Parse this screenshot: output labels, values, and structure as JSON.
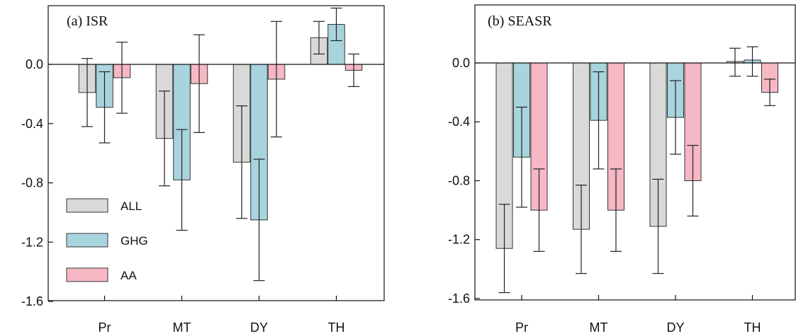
{
  "colors": {
    "ALL": "#d9d9d9",
    "GHG": "#a8d4dd",
    "AA": "#f5b8c4",
    "edge": "#333333"
  },
  "chart_data": [
    {
      "type": "bar",
      "title": "(a) ISR",
      "categories": [
        "Pr",
        "MT",
        "DY",
        "TH"
      ],
      "ylim": [
        -1.6,
        0.4
      ],
      "yticks": [
        "0.0",
        "-0.4",
        "-0.8",
        "-1.2",
        "-1.6"
      ],
      "ytick_values": [
        0.0,
        -0.4,
        -0.8,
        -1.2,
        -1.6
      ],
      "legend": {
        "position": "lower-left",
        "entries": [
          "ALL",
          "GHG",
          "AA"
        ]
      },
      "series": [
        {
          "name": "ALL",
          "values": [
            -0.19,
            -0.5,
            -0.66,
            0.18
          ],
          "err_low": [
            -0.42,
            -0.82,
            -1.04,
            0.07
          ],
          "err_high": [
            0.04,
            -0.18,
            -0.28,
            0.29
          ]
        },
        {
          "name": "GHG",
          "values": [
            -0.29,
            -0.78,
            -1.05,
            0.27
          ],
          "err_low": [
            -0.53,
            -1.12,
            -1.46,
            0.16
          ],
          "err_high": [
            -0.05,
            -0.44,
            -0.64,
            0.38
          ]
        },
        {
          "name": "AA",
          "values": [
            -0.09,
            -0.13,
            -0.1,
            -0.04
          ],
          "err_low": [
            -0.33,
            -0.46,
            -0.49,
            -0.15
          ],
          "err_high": [
            0.15,
            0.2,
            0.29,
            0.07
          ]
        }
      ]
    },
    {
      "type": "bar",
      "title": "(b) SEASR",
      "categories": [
        "Pr",
        "MT",
        "DY",
        "TH"
      ],
      "ylim": [
        -1.6,
        0.4
      ],
      "yticks": [
        "0.0",
        "-0.4",
        "-0.8",
        "-1.2",
        "-1.6"
      ],
      "ytick_values": [
        0.0,
        -0.4,
        -0.8,
        -1.2,
        -1.6
      ],
      "series": [
        {
          "name": "ALL",
          "values": [
            -1.26,
            -1.13,
            -1.11,
            0.01
          ],
          "err_low": [
            -1.56,
            -1.43,
            -1.43,
            -0.09
          ],
          "err_high": [
            -0.96,
            -0.83,
            -0.79,
            0.1
          ]
        },
        {
          "name": "GHG",
          "values": [
            -0.64,
            -0.39,
            -0.37,
            0.02
          ],
          "err_low": [
            -0.98,
            -0.72,
            -0.62,
            -0.09
          ],
          "err_high": [
            -0.3,
            -0.06,
            -0.12,
            0.11
          ]
        },
        {
          "name": "AA",
          "values": [
            -1.0,
            -1.0,
            -0.8,
            -0.2
          ],
          "err_low": [
            -1.28,
            -1.28,
            -1.04,
            -0.29
          ],
          "err_high": [
            -0.72,
            -0.72,
            -0.56,
            -0.11
          ]
        }
      ]
    }
  ]
}
